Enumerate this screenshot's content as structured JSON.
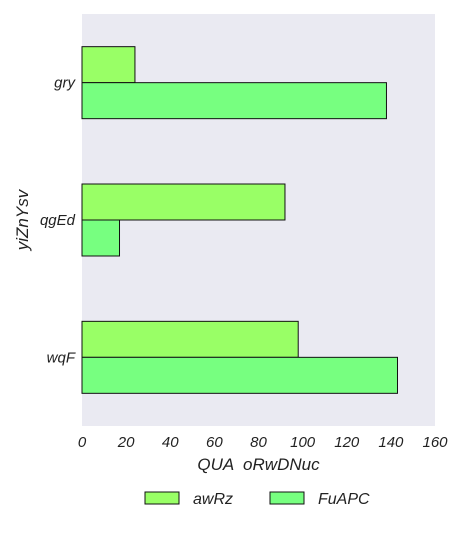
{
  "chart_data": {
    "type": "bar",
    "orientation": "horizontal",
    "categories": [
      "gry",
      "qgEd",
      "wqF"
    ],
    "series": [
      {
        "name": "awRz",
        "values": [
          24,
          92,
          98
        ],
        "color": "#99ff66"
      },
      {
        "name": "FuAPC",
        "values": [
          138,
          17,
          143
        ],
        "color": "#77ff80"
      }
    ],
    "xlabel": "QUA  oRwDNuc",
    "ylabel": "yiZnYsv",
    "xlim": [
      0,
      160
    ],
    "xticks": [
      0,
      20,
      40,
      60,
      80,
      100,
      120,
      140,
      160
    ],
    "background": "#eaeaf2",
    "grid": false,
    "legend_position": "bottom"
  }
}
